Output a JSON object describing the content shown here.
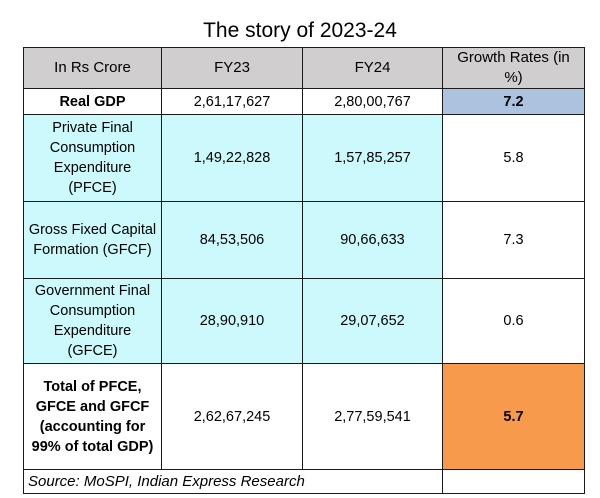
{
  "title": "The story of 2023-24",
  "header": {
    "label": "In Rs Crore",
    "fy23": "FY23",
    "fy24": "FY24",
    "growth": "Growth Rates (in %)"
  },
  "rows": [
    {
      "label": "Real GDP",
      "fy23": "2,61,17,627",
      "fy24": "2,80,00,767",
      "growth": "7.2"
    },
    {
      "label": "Private Final Consumption Expenditure (PFCE)",
      "fy23": "1,49,22,828",
      "fy24": "1,57,85,257",
      "growth": "5.8"
    },
    {
      "label": "Gross Fixed Capital Formation (GFCF)",
      "fy23": "84,53,506",
      "fy24": "90,66,633",
      "growth": "7.3"
    },
    {
      "label": "Government Final Consumption Expenditure (GFCE)",
      "fy23": "28,90,910",
      "fy24": "29,07,652",
      "growth": "0.6"
    },
    {
      "label": "Total of PFCE, GFCE and GFCF (accounting for 99% of total GDP)",
      "fy23": "2,62,67,245",
      "fy24": "2,77,59,541",
      "growth": "5.7"
    }
  ],
  "source": "Source: MoSPI, Indian Express Research",
  "colors": {
    "header_bg": "#d0cece",
    "cyan_bg": "#ccf9fb",
    "gdp_growth_bg": "#acc3df",
    "total_growth_bg": "#f79a4c"
  }
}
